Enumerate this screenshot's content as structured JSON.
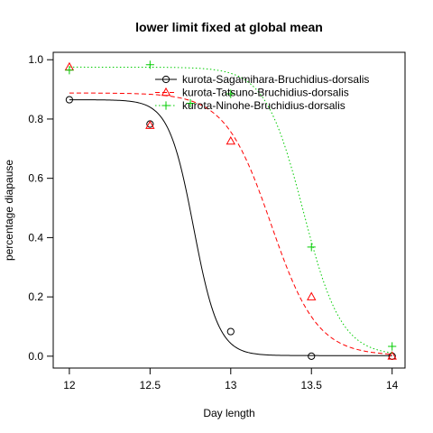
{
  "chart_data": {
    "type": "line",
    "title": "lower limit fixed at global mean",
    "xlabel": "Day length",
    "ylabel": "percentage diapause",
    "xlim": [
      11.9,
      14.08
    ],
    "ylim": [
      -0.04,
      1.025
    ],
    "x_ticks": [
      12,
      12.5,
      13,
      13.5,
      14
    ],
    "x_tick_labels": [
      "12",
      "12.5",
      "13",
      "13.5",
      "14"
    ],
    "y_ticks": [
      0.0,
      0.2,
      0.4,
      0.6,
      0.8,
      1.0
    ],
    "y_tick_labels": [
      "0.0",
      "0.2",
      "0.4",
      "0.6",
      "0.8",
      "1.0"
    ],
    "legend_position": "top-right",
    "grid": false,
    "series": [
      {
        "name": "kurota-Sagamihara-Bruchidius-dorsalis",
        "color": "#000000",
        "marker": "circle",
        "line_style": "solid",
        "points": [
          {
            "x": 12.0,
            "y": 0.865
          },
          {
            "x": 12.5,
            "y": 0.783
          },
          {
            "x": 13.0,
            "y": 0.083
          },
          {
            "x": 13.5,
            "y": 0.0
          },
          {
            "x": 14.0,
            "y": 0.0
          }
        ],
        "fit": {
          "upper": 0.865,
          "lower": 0.002,
          "midpoint": 12.77,
          "slope": 13.0
        }
      },
      {
        "name": "kurota-Tatsuno-Bruchidius-dorsalis",
        "color": "#ff0000",
        "marker": "triangle",
        "line_style": "dashed",
        "points": [
          {
            "x": 12.0,
            "y": 0.975
          },
          {
            "x": 12.5,
            "y": 0.778
          },
          {
            "x": 13.0,
            "y": 0.725
          },
          {
            "x": 13.5,
            "y": 0.2
          },
          {
            "x": 14.0,
            "y": 0.0
          }
        ],
        "fit": {
          "upper": 0.888,
          "lower": 0.002,
          "midpoint": 13.25,
          "slope": 7.0
        }
      },
      {
        "name": "kurota-Ninohe-Bruchidius-dorsalis",
        "color": "#00cc00",
        "marker": "plus",
        "line_style": "dotted",
        "points": [
          {
            "x": 12.0,
            "y": 0.965
          },
          {
            "x": 12.5,
            "y": 0.983
          },
          {
            "x": 12.75,
            "y": 0.853
          },
          {
            "x": 13.0,
            "y": 0.885
          },
          {
            "x": 13.5,
            "y": 0.368
          },
          {
            "x": 14.0,
            "y": 0.033
          }
        ],
        "fit": {
          "upper": 0.975,
          "lower": 0.002,
          "midpoint": 13.45,
          "slope": 8.5
        }
      }
    ]
  }
}
